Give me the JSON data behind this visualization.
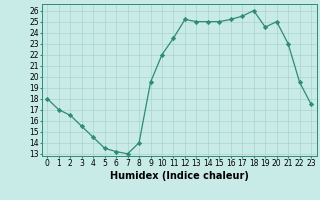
{
  "x": [
    0,
    1,
    2,
    3,
    4,
    5,
    6,
    7,
    8,
    9,
    10,
    11,
    12,
    13,
    14,
    15,
    16,
    17,
    18,
    19,
    20,
    21,
    22,
    23
  ],
  "y": [
    18,
    17,
    16.5,
    15.5,
    14.5,
    13.5,
    13.2,
    13.0,
    14,
    19.5,
    22,
    23.5,
    25.2,
    25,
    25,
    25,
    25.2,
    25.5,
    26,
    24.5,
    25,
    23,
    19.5,
    17.5
  ],
  "line_color": "#2e8b74",
  "marker": "D",
  "marker_size": 2.2,
  "bg_color": "#c8ebe8",
  "grid_color": "#aad4d0",
  "xlabel": "Humidex (Indice chaleur)",
  "xlim": [
    -0.5,
    23.5
  ],
  "ylim": [
    12.8,
    26.6
  ],
  "yticks": [
    13,
    14,
    15,
    16,
    17,
    18,
    19,
    20,
    21,
    22,
    23,
    24,
    25,
    26
  ],
  "xticks": [
    0,
    1,
    2,
    3,
    4,
    5,
    6,
    7,
    8,
    9,
    10,
    11,
    12,
    13,
    14,
    15,
    16,
    17,
    18,
    19,
    20,
    21,
    22,
    23
  ],
  "tick_fontsize": 5.5,
  "label_fontsize": 7.0
}
